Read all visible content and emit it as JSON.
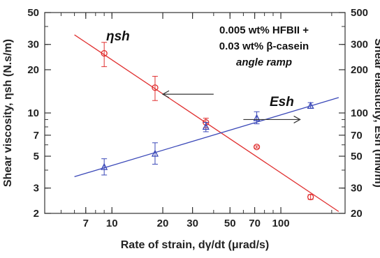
{
  "chart_data": {
    "type": "scatter",
    "x_scale": "log",
    "y_scale": "log",
    "y2_scale": "log",
    "xlim": [
      4,
      240
    ],
    "ylim": [
      2,
      50
    ],
    "y2lim": [
      20,
      500
    ],
    "x_ticks": [
      7,
      10,
      20,
      30,
      50,
      70,
      100
    ],
    "y_ticks": [
      2,
      3,
      5,
      7,
      10,
      20,
      30,
      50
    ],
    "y2_ticks": [
      20,
      30,
      50,
      70,
      100,
      200,
      300,
      500
    ],
    "xlabel": "Rate of strain, dγ/dt (μrad/s)",
    "ylabel": "Shear viscosity, ηsh (N.s/m)",
    "y2label": "Shear elasticity, Esh (mN/m)",
    "annotation_lines": [
      "0.005 wt% HFBII +",
      "0.03 wt% β-casein",
      "angle ramp"
    ],
    "series": [
      {
        "name": "ηsh",
        "axis": "left",
        "color": "#e03030",
        "marker": "circle",
        "x": [
          9,
          18,
          36,
          72,
          150
        ],
        "y": [
          26,
          15,
          8.6,
          5.8,
          2.6
        ],
        "err_low": [
          21,
          12.2,
          7.9,
          5.7,
          2.5
        ],
        "err_high": [
          31,
          18,
          9.2,
          5.9,
          2.7
        ],
        "fit_x": [
          6,
          220
        ],
        "fit_y": [
          35,
          2.06
        ]
      },
      {
        "name": "Esh",
        "axis": "right",
        "color": "#3a48b8",
        "marker": "triangle",
        "x": [
          9,
          18,
          36,
          72,
          150
        ],
        "y": [
          42,
          52,
          80,
          92,
          112
        ],
        "err_low": [
          37,
          44,
          74,
          84,
          108
        ],
        "err_high": [
          48,
          62,
          86,
          102,
          118
        ],
        "fit_x": [
          6,
          220
        ],
        "fit_y": [
          36,
          128
        ]
      }
    ],
    "arrows": [
      {
        "points_to": "left",
        "from": [
          40,
          13.5
        ],
        "to": [
          20,
          13.5
        ]
      },
      {
        "points_to": "right",
        "from": [
          60,
          9
        ],
        "to": [
          130,
          9
        ]
      }
    ]
  }
}
